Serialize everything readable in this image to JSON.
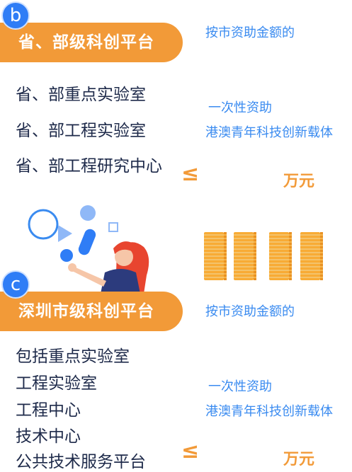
{
  "section_b": {
    "badge": "b",
    "title": "省、部级科创平台",
    "items": [
      "省、部重点实验室",
      "省、部工程实验室",
      "省、部工程研究中心"
    ],
    "funding_basis": "按市资助金额的",
    "one_time_label": "一次性资助",
    "carrier_label": "港澳青年科技创新载体",
    "comparator": "≤",
    "unit": "万元"
  },
  "section_c": {
    "badge": "c",
    "title": "深圳市级科创平台",
    "items": [
      "包括重点实验室",
      "工程实验室",
      "工程中心",
      "技术中心",
      "公共技术服务平台"
    ],
    "funding_basis": "按市资助金额的",
    "one_time_label": "一次性资助",
    "carrier_label": "港澳青年科技创新载体",
    "comparator": "≤",
    "unit": "万元"
  },
  "colors": {
    "accent_orange": "#f29a38",
    "accent_blue": "#3a8bf0",
    "text_dark": "#1e2a4a"
  },
  "icons": [
    "woman-pointing-illustration",
    "coin-stacks-illustration"
  ]
}
